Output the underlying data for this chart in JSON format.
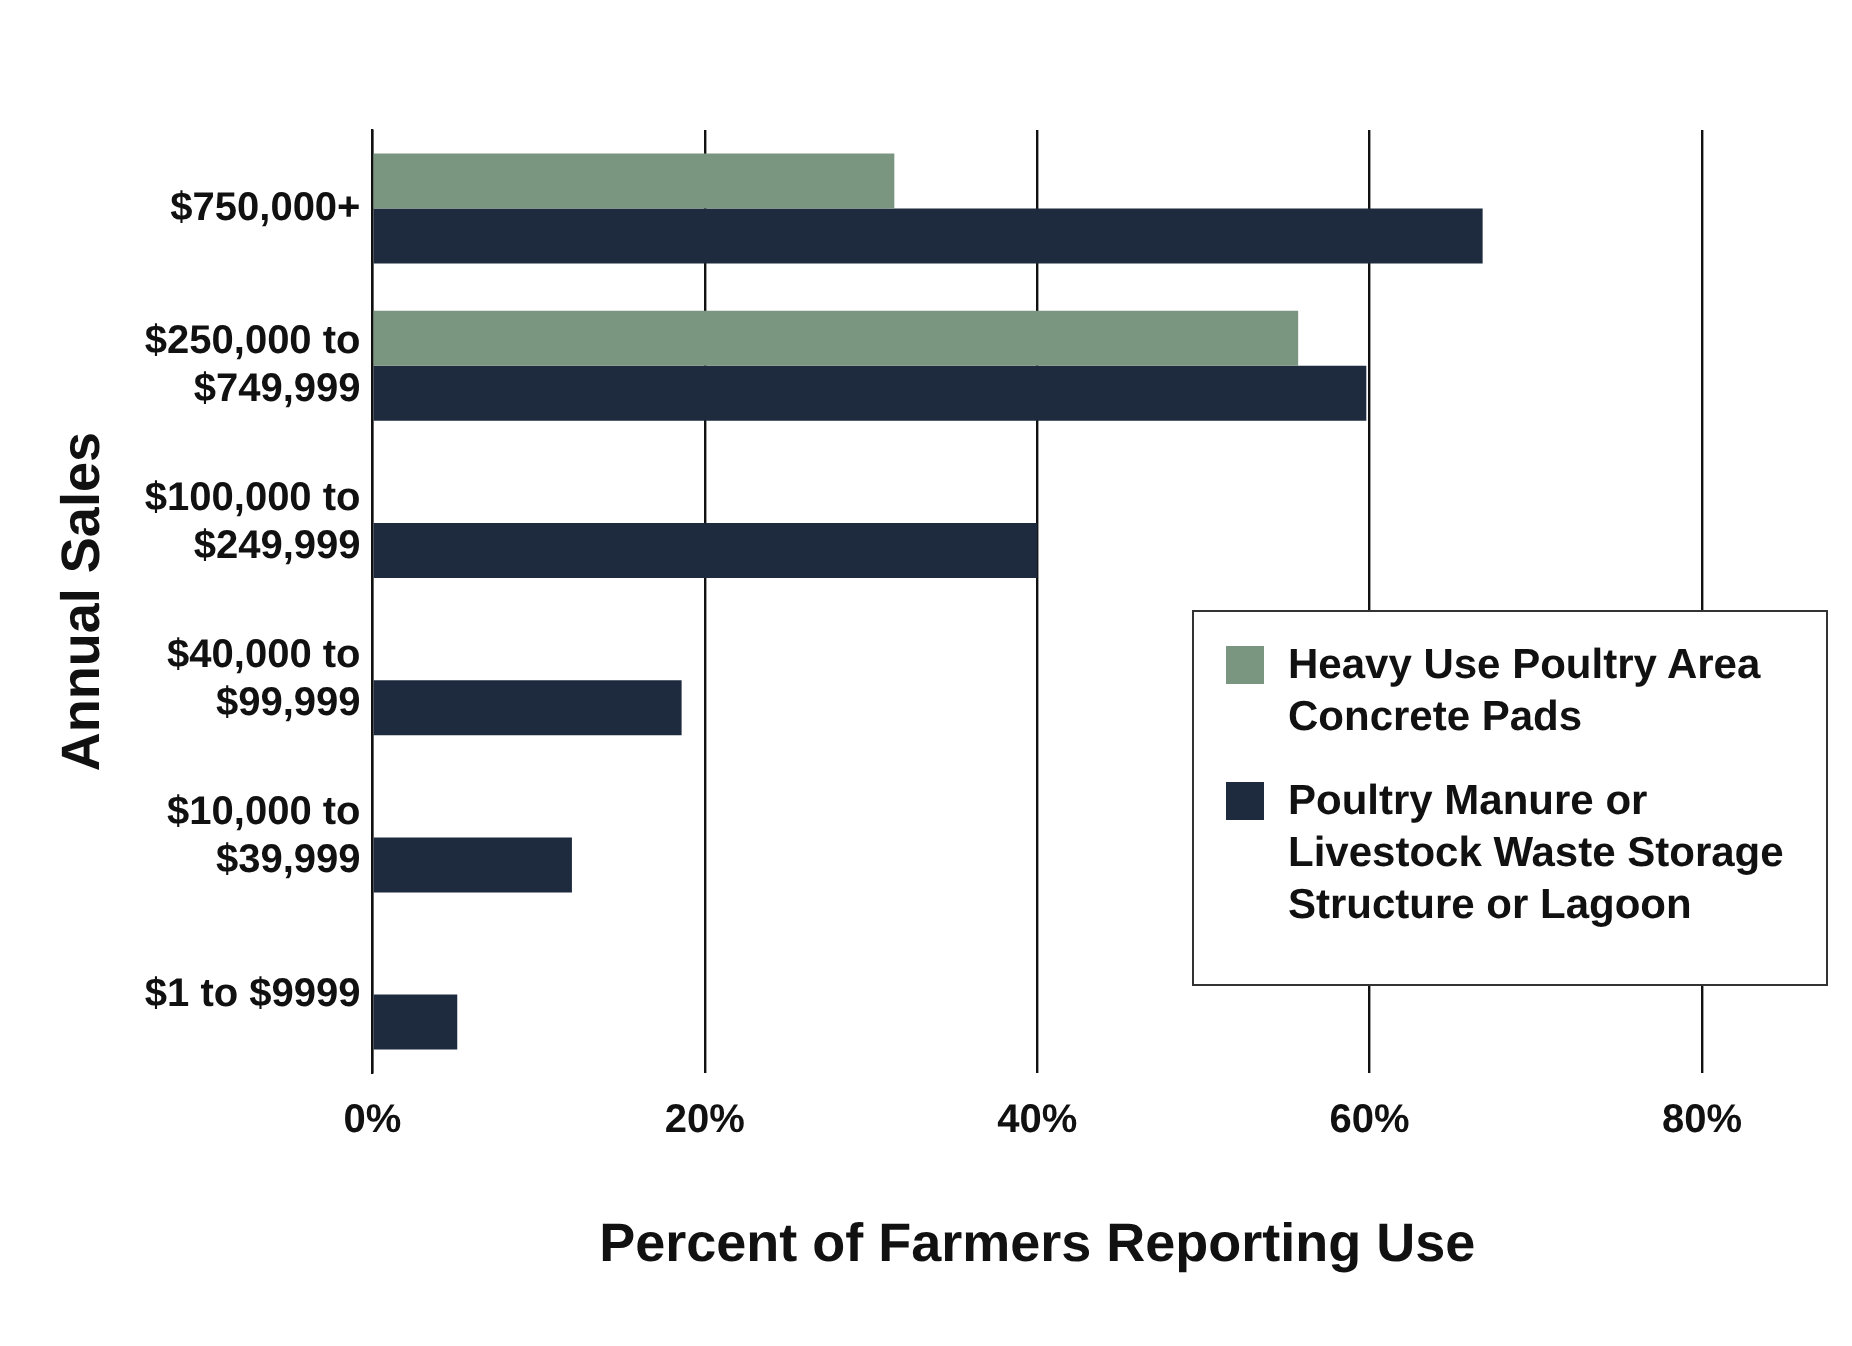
{
  "chart_data": {
    "type": "bar",
    "orientation": "horizontal",
    "xlabel": "Percent of Farmers Reporting Use",
    "ylabel": "Annual Sales",
    "categories": [
      "$750,000+",
      "$250,000 to $749,999",
      "$100,000 to $249,999",
      "$40,000 to $99,999",
      "$10,000 to $39,999",
      "$1 to $9999"
    ],
    "series": [
      {
        "name": "Heavy Use Poultry Area Concrete Pads",
        "color": "#7a9580",
        "values": [
          31.4,
          55.7,
          null,
          null,
          null,
          null
        ]
      },
      {
        "name": "Poultry Manure or Livestock Waste Storage Structure or Lagoon",
        "color": "#1e2a3e",
        "values": [
          66.8,
          59.8,
          40,
          18.6,
          12,
          5.1
        ]
      }
    ],
    "xlim": [
      0,
      80
    ],
    "xticks": [
      {
        "value": 0,
        "label": "0%"
      },
      {
        "value": 20,
        "label": "20%"
      },
      {
        "value": 40,
        "label": "40%"
      },
      {
        "value": 60,
        "label": "60%"
      },
      {
        "value": 80,
        "label": "80%"
      }
    ],
    "grid": "x",
    "legend": "right"
  }
}
